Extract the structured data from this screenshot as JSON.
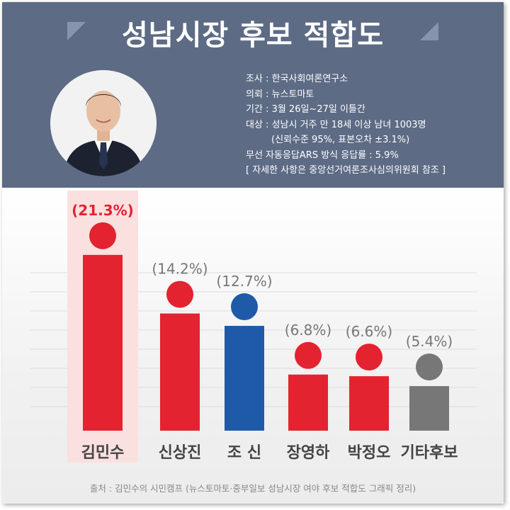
{
  "title": "성남시장 후보 적합도",
  "survey_info": {
    "line1": "조사 : 한국사회여론연구소",
    "line2": "의뢰 : 뉴스토마토",
    "line3": "기간 : 3월 26일~27일 이틀간",
    "line4": "대상 : 성남시 거주 만 18세 이상 남녀 1003명",
    "line5": "(신뢰수준 95%, 표본오차 ±3.1%)",
    "line6": "무선 자동응답ARS 방식   응답률 : 5.9%",
    "line7": "[ 자세한 사항은 중앙선거여론조사심의위원회 참조 ]"
  },
  "source": "출처 : 김민수의 시민캠프 (뉴스토마토·중부일보 성남시장 여야 후보 적합도 그래픽 정리)",
  "colors": {
    "header_bg": "#5d6b85",
    "red": "#e3232f",
    "blue": "#1f5aa8",
    "gray": "#777777",
    "highlight": "#fbe0e0",
    "label_highlight": "#e3232f",
    "label_normal": "#777777"
  },
  "chart_data": {
    "type": "bar",
    "title": "성남시장 후보 적합도",
    "categories": [
      "김민수",
      "신상진",
      "조 신",
      "장영하",
      "박정오",
      "기타후보"
    ],
    "values": [
      21.3,
      14.2,
      12.7,
      6.8,
      6.6,
      5.4
    ],
    "data_labels": [
      "(21.3%)",
      "(14.2%)",
      "(12.7%)",
      "(6.8%)",
      "(6.6%)",
      "(5.4%)"
    ],
    "bar_colors": [
      "#e3232f",
      "#e3232f",
      "#1f5aa8",
      "#e3232f",
      "#e3232f",
      "#777777"
    ],
    "highlighted_category": "김민수",
    "unit": "%",
    "grid": true,
    "xlabel": "",
    "ylabel": ""
  }
}
